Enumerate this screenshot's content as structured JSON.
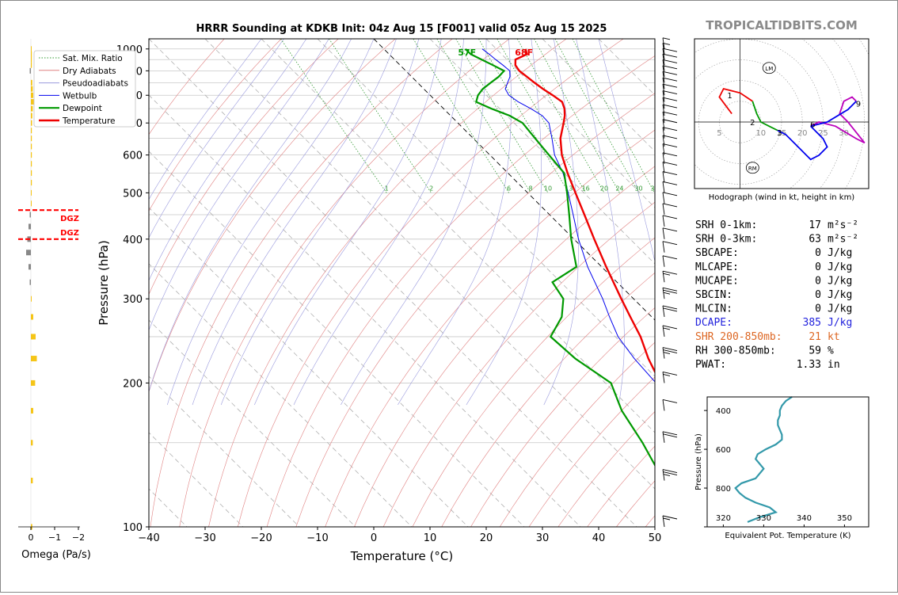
{
  "title": "HRRR Sounding at KDKB Init: 04z Aug 15 [F001] valid 05z Aug 15 2025",
  "brand": "TROPICALTIDBITS.COM",
  "colors": {
    "temperature": "#ee0000",
    "dewpoint": "#009900",
    "wetbulb": "#0000ee",
    "dry_adiabat": "#e08080",
    "pseudoadiabat": "#9999dd",
    "mixratio": "#339933",
    "isotherm": "#b0b0b0",
    "dgz": "#ff0000",
    "omega_up": "#f5c518",
    "omega_down": "#888888",
    "theta_e": "#3399aa",
    "dcape": "#2222dd",
    "shr": "#dd6622",
    "hodo_0_1": "#ee0000",
    "hodo_1_3": "#009900",
    "hodo_3_6": "#0000ee",
    "hodo_6_9": "#bb00bb"
  },
  "chart_data": [
    {
      "type": "line",
      "name": "skewt",
      "xlabel": "Temperature (°C)",
      "ylabel": "Pressure (hPa)",
      "xlim": [
        -40,
        50
      ],
      "ylim": [
        1050,
        100
      ],
      "y_scale": "log",
      "x_ticks": [
        -40,
        -30,
        -20,
        -10,
        0,
        10,
        20,
        30,
        40,
        50
      ],
      "x_tick_labels": [
        "−40",
        "−30",
        "−20",
        "−10",
        "0",
        "10",
        "20",
        "30",
        "40",
        "50"
      ],
      "y_ticks": [
        100,
        200,
        300,
        400,
        500,
        600,
        700,
        800,
        900,
        1000
      ],
      "y_tick_labels": [
        "100",
        "200",
        "300",
        "400",
        "500",
        "600",
        "700",
        "800",
        "900",
        "1000"
      ],
      "legend": {
        "position": "top-left",
        "entries": [
          "Sat. Mix. Ratio",
          "Dry Adiabats",
          "Pseudoadiabats",
          "Wetbulb",
          "Dewpoint",
          "Temperature"
        ]
      },
      "mixing_ratio_labels": [
        "1",
        "2",
        "6",
        "8",
        "10",
        "13",
        "16",
        "20",
        "24",
        "30",
        "36"
      ],
      "surface_labels": {
        "dewpoint": "57F",
        "temperature": "68F"
      },
      "temperature": [
        [
          1000,
          25.2
        ],
        [
          975,
          24.5
        ],
        [
          950,
          21.5
        ],
        [
          925,
          20.5
        ],
        [
          900,
          20.2
        ],
        [
          875,
          20.5
        ],
        [
          850,
          20.8
        ],
        [
          825,
          21.2
        ],
        [
          800,
          21.8
        ],
        [
          775,
          22.3
        ],
        [
          750,
          21.5
        ],
        [
          725,
          20.3
        ],
        [
          700,
          18.8
        ],
        [
          650,
          15.5
        ],
        [
          600,
          12.8
        ],
        [
          550,
          10.6
        ],
        [
          500,
          8.5
        ],
        [
          450,
          6.2
        ],
        [
          400,
          3.6
        ],
        [
          350,
          0.8
        ],
        [
          300,
          -2.2
        ],
        [
          275,
          -3.8
        ],
        [
          250,
          -5.5
        ],
        [
          225,
          -8.0
        ],
        [
          200,
          -10.2
        ],
        [
          175,
          -10.5
        ],
        [
          150,
          -10.0
        ],
        [
          125,
          -9.0
        ],
        [
          100,
          -7.0
        ]
      ],
      "dewpoint": [
        [
          1000,
          14.5
        ],
        [
          975,
          14.5
        ],
        [
          950,
          15.5
        ],
        [
          925,
          16.5
        ],
        [
          900,
          17.5
        ],
        [
          875,
          15.5
        ],
        [
          850,
          13.0
        ],
        [
          825,
          10.5
        ],
        [
          800,
          8.5
        ],
        [
          775,
          7.0
        ],
        [
          750,
          8.5
        ],
        [
          725,
          10.5
        ],
        [
          700,
          11.5
        ],
        [
          650,
          11.0
        ],
        [
          600,
          10.5
        ],
        [
          550,
          10.0
        ],
        [
          500,
          7.0
        ],
        [
          450,
          3.5
        ],
        [
          400,
          -0.5
        ],
        [
          350,
          -4.5
        ],
        [
          325,
          -11.5
        ],
        [
          300,
          -12.5
        ],
        [
          275,
          -16.0
        ],
        [
          250,
          -21.5
        ],
        [
          225,
          -21.0
        ],
        [
          200,
          -19.0
        ],
        [
          175,
          -22.0
        ],
        [
          150,
          -24.0
        ],
        [
          125,
          -27.0
        ],
        [
          100,
          -29.0
        ]
      ],
      "wetbulb": [
        [
          1000,
          17.5
        ],
        [
          975,
          17.8
        ],
        [
          950,
          18.0
        ],
        [
          925,
          18.3
        ],
        [
          900,
          18.5
        ],
        [
          875,
          17.5
        ],
        [
          850,
          16.0
        ],
        [
          825,
          14.5
        ],
        [
          800,
          14.0
        ],
        [
          775,
          14.5
        ],
        [
          750,
          15.5
        ],
        [
          725,
          16.3
        ],
        [
          700,
          16.2
        ],
        [
          650,
          14.0
        ],
        [
          600,
          11.5
        ],
        [
          550,
          9.8
        ],
        [
          500,
          7.2
        ],
        [
          450,
          4.2
        ],
        [
          400,
          0.8
        ],
        [
          350,
          -2.5
        ],
        [
          300,
          -5.5
        ],
        [
          275,
          -7.5
        ],
        [
          250,
          -9.5
        ],
        [
          225,
          -10.5
        ],
        [
          200,
          -11.0
        ]
      ],
      "wind_barbs_speed_kt": [
        [
          1000,
          5
        ],
        [
          975,
          8
        ],
        [
          950,
          10
        ],
        [
          925,
          12
        ],
        [
          900,
          13
        ],
        [
          875,
          12
        ],
        [
          850,
          10
        ],
        [
          825,
          10
        ],
        [
          800,
          10
        ],
        [
          775,
          10
        ],
        [
          750,
          10
        ],
        [
          725,
          10
        ],
        [
          700,
          10
        ],
        [
          675,
          10
        ],
        [
          650,
          10
        ],
        [
          625,
          10
        ],
        [
          600,
          10
        ],
        [
          575,
          10
        ],
        [
          550,
          10
        ],
        [
          525,
          10
        ],
        [
          500,
          10
        ],
        [
          475,
          10
        ],
        [
          450,
          10
        ],
        [
          425,
          10
        ],
        [
          400,
          10
        ],
        [
          375,
          10
        ],
        [
          350,
          10
        ],
        [
          325,
          15
        ],
        [
          300,
          25
        ],
        [
          275,
          20
        ],
        [
          250,
          15
        ],
        [
          225,
          25
        ],
        [
          200,
          15
        ],
        [
          175,
          10
        ],
        [
          150,
          20
        ],
        [
          125,
          25
        ],
        [
          100,
          15
        ]
      ]
    },
    {
      "type": "bar",
      "name": "omega",
      "xlabel": "Omega (Pa/s)",
      "xlim": [
        0,
        -2
      ],
      "x_ticks": [
        0,
        -1,
        -2
      ],
      "x_tick_labels": [
        "0",
        "−1",
        "−2"
      ],
      "dgz_label": "DGZ",
      "dgz_levels_hpa": [
        400,
        460
      ],
      "values": [
        [
          1000,
          -0.03
        ],
        [
          975,
          -0.04
        ],
        [
          950,
          -0.04
        ],
        [
          925,
          -0.04
        ],
        [
          900,
          0.05
        ],
        [
          850,
          -0.06
        ],
        [
          825,
          -0.08
        ],
        [
          800,
          -0.1
        ],
        [
          775,
          -0.12
        ],
        [
          750,
          -0.08
        ],
        [
          725,
          -0.06
        ],
        [
          700,
          -0.05
        ],
        [
          675,
          -0.04
        ],
        [
          650,
          -0.04
        ],
        [
          625,
          -0.04
        ],
        [
          600,
          -0.04
        ],
        [
          575,
          -0.04
        ],
        [
          550,
          -0.04
        ],
        [
          525,
          -0.04
        ],
        [
          500,
          -0.03
        ],
        [
          475,
          -0.03
        ],
        [
          450,
          0.05
        ],
        [
          425,
          0.1
        ],
        [
          400,
          0.15
        ],
        [
          375,
          0.2
        ],
        [
          350,
          0.1
        ],
        [
          325,
          0.05
        ],
        [
          300,
          -0.03
        ],
        [
          275,
          -0.1
        ],
        [
          250,
          -0.2
        ],
        [
          225,
          -0.25
        ],
        [
          200,
          -0.18
        ],
        [
          175,
          -0.1
        ],
        [
          150,
          -0.08
        ],
        [
          125,
          -0.08
        ],
        [
          100,
          -0.06
        ]
      ]
    },
    {
      "type": "line",
      "name": "hodograph",
      "caption": "Hodograph (wind in kt, height in km)",
      "ring_labels": [
        "5",
        "10",
        "15",
        "20",
        "25",
        "30"
      ],
      "u_lim": [
        -11,
        31
      ],
      "v_lim": [
        -16,
        20
      ],
      "marker_labels": [
        "LM",
        "RM"
      ],
      "markers": [
        [
          7,
          13
        ],
        [
          3,
          -11
        ]
      ],
      "height_labels": [
        {
          "label": "1",
          "u": -2.5,
          "v": 6.5
        },
        {
          "label": "2",
          "u": 3,
          "v": 0
        },
        {
          "label": "3",
          "u": 9.5,
          "v": -2.5
        },
        {
          "label": "6",
          "u": 17.5,
          "v": -0.5
        },
        {
          "label": "9",
          "u": 28.5,
          "v": 4.5
        }
      ],
      "segments": [
        {
          "layer": "0-1km",
          "points": [
            [
              -2,
              2
            ],
            [
              -5,
              6
            ],
            [
              -4,
              8
            ],
            [
              -2,
              7.5
            ],
            [
              0,
              7
            ],
            [
              3,
              5
            ]
          ]
        },
        {
          "layer": "1-3km",
          "points": [
            [
              3,
              5
            ],
            [
              4,
              2
            ],
            [
              5,
              0
            ],
            [
              7,
              -1
            ],
            [
              9,
              -2
            ]
          ]
        },
        {
          "layer": "3-6km",
          "points": [
            [
              9,
              -2
            ],
            [
              11,
              -3
            ],
            [
              13,
              -5
            ],
            [
              15,
              -7
            ],
            [
              17,
              -9
            ],
            [
              19,
              -8
            ],
            [
              21,
              -6
            ],
            [
              20,
              -4
            ],
            [
              17,
              -1
            ]
          ]
        },
        {
          "layer": "6-9km",
          "points": [
            [
              17,
              -1
            ],
            [
              19,
              0
            ],
            [
              23,
              -1
            ],
            [
              28,
              -4
            ],
            [
              30,
              -5
            ],
            [
              26,
              0
            ],
            [
              24,
              2
            ],
            [
              25,
              5
            ],
            [
              27,
              6
            ],
            [
              28,
              5
            ]
          ]
        },
        {
          "layer": "9-12km",
          "points": [
            [
              28,
              5
            ],
            [
              26,
              3
            ],
            [
              21,
              0
            ],
            [
              17,
              -1
            ]
          ]
        }
      ]
    },
    {
      "type": "line",
      "name": "theta_e",
      "xlabel": "Equivalent Pot. Temperature (K)",
      "ylabel": "Pressure (hPa)",
      "xlim": [
        316,
        356
      ],
      "ylim": [
        1000,
        330
      ],
      "x_ticks": [
        320,
        330,
        340,
        350
      ],
      "x_tick_labels": [
        "320",
        "330",
        "340",
        "350"
      ],
      "y_ticks": [
        400,
        600,
        800
      ],
      "y_tick_labels": [
        "400",
        "600",
        "800"
      ],
      "values": [
        [
          975,
          326
        ],
        [
          950,
          329
        ],
        [
          925,
          333
        ],
        [
          900,
          331.5
        ],
        [
          875,
          328
        ],
        [
          850,
          325.5
        ],
        [
          825,
          324
        ],
        [
          800,
          323
        ],
        [
          775,
          324.5
        ],
        [
          750,
          328
        ],
        [
          725,
          329
        ],
        [
          700,
          330
        ],
        [
          675,
          329
        ],
        [
          650,
          328
        ],
        [
          625,
          328.5
        ],
        [
          600,
          330.5
        ],
        [
          575,
          333
        ],
        [
          550,
          334.5
        ],
        [
          525,
          334.5
        ],
        [
          500,
          334
        ],
        [
          475,
          333.5
        ],
        [
          450,
          333.5
        ],
        [
          425,
          334
        ],
        [
          400,
          334
        ],
        [
          375,
          334.5
        ],
        [
          350,
          335.5
        ],
        [
          330,
          337
        ]
      ]
    }
  ],
  "indices": [
    {
      "label": "SRH 0-1km:",
      "value": "17",
      "unit": "m²s⁻²",
      "style": "normal"
    },
    {
      "label": "SRH 0-3km:",
      "value": "63",
      "unit": "m²s⁻²",
      "style": "normal"
    },
    {
      "label": "SBCAPE:",
      "value": "0",
      "unit": "J/kg",
      "style": "normal"
    },
    {
      "label": "MLCAPE:",
      "value": "0",
      "unit": "J/kg",
      "style": "normal"
    },
    {
      "label": "MUCAPE:",
      "value": "0",
      "unit": "J/kg",
      "style": "normal"
    },
    {
      "label": "SBCIN:",
      "value": "0",
      "unit": "J/kg",
      "style": "normal"
    },
    {
      "label": "MLCIN:",
      "value": "0",
      "unit": "J/kg",
      "style": "normal"
    },
    {
      "label": "DCAPE:",
      "value": "385",
      "unit": "J/kg",
      "style": "dcape"
    },
    {
      "label": "SHR 200-850mb:",
      "value": "21",
      "unit": "kt",
      "style": "shr"
    },
    {
      "label": "RH 300-850mb:",
      "value": "59",
      "unit": "%",
      "style": "normal"
    },
    {
      "label": "PWAT:",
      "value": "1.33",
      "unit": "in",
      "style": "normal"
    }
  ]
}
